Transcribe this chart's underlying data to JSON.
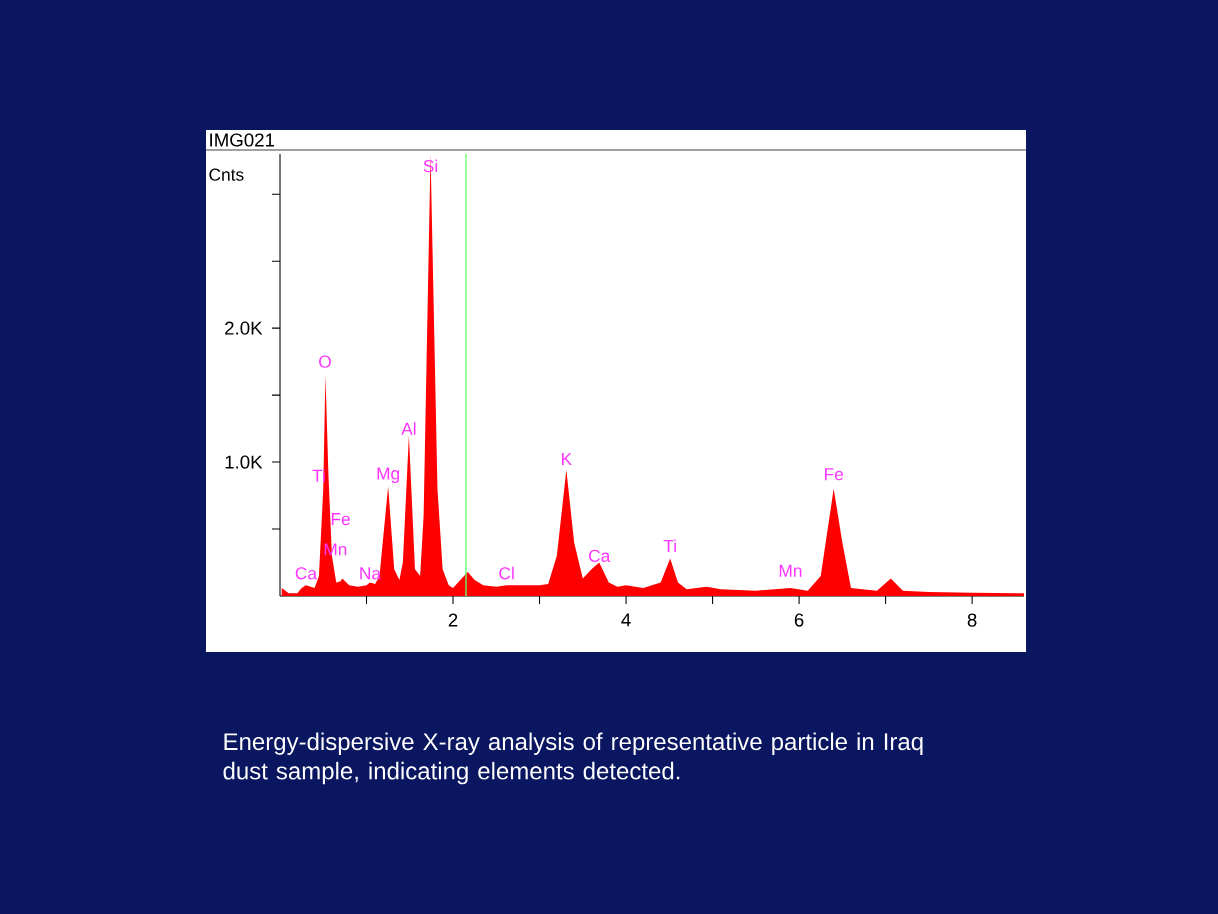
{
  "chart_data": {
    "type": "area",
    "title": "IMG021",
    "ylabel": "Cnts",
    "xlim": [
      0,
      8.6
    ],
    "ylim": [
      0,
      3300
    ],
    "xticks": [
      {
        "value": 1,
        "label": null
      },
      2,
      {
        "value": 3,
        "label": null
      },
      4,
      {
        "value": 5,
        "label": null
      },
      6,
      {
        "value": 7,
        "label": null
      },
      8
    ],
    "yticks": [
      {
        "value": 500,
        "label": null
      },
      {
        "value": 1000,
        "label": "1.0K"
      },
      {
        "value": 1500,
        "label": null
      },
      {
        "value": 2000,
        "label": "2.0K"
      },
      {
        "value": 2500,
        "label": null
      },
      {
        "value": 3000,
        "label": null
      }
    ],
    "x": [
      0.02,
      0.1,
      0.2,
      0.25,
      0.3,
      0.4,
      0.45,
      0.5,
      0.525,
      0.56,
      0.6,
      0.65,
      0.7,
      0.72,
      0.8,
      0.9,
      1.0,
      1.04,
      1.1,
      1.15,
      1.25,
      1.32,
      1.38,
      1.42,
      1.49,
      1.56,
      1.62,
      1.66,
      1.74,
      1.82,
      1.88,
      1.95,
      2.0,
      2.1,
      2.17,
      2.25,
      2.35,
      2.5,
      2.62,
      2.8,
      3.0,
      3.1,
      3.2,
      3.31,
      3.4,
      3.5,
      3.6,
      3.69,
      3.8,
      3.9,
      4.0,
      4.2,
      4.4,
      4.51,
      4.6,
      4.7,
      4.93,
      5.1,
      5.5,
      5.9,
      6.1,
      6.25,
      6.4,
      6.5,
      6.6,
      6.9,
      7.06,
      7.2,
      7.5,
      8.0,
      8.6
    ],
    "series": [
      {
        "color": "#ff0000",
        "values": [
          60,
          20,
          20,
          60,
          80,
          60,
          150,
          800,
          1650,
          900,
          300,
          100,
          110,
          130,
          80,
          70,
          80,
          100,
          90,
          150,
          820,
          200,
          120,
          250,
          1200,
          200,
          150,
          600,
          3300,
          800,
          200,
          80,
          60,
          130,
          180,
          120,
          80,
          70,
          80,
          80,
          80,
          90,
          300,
          940,
          400,
          130,
          200,
          250,
          100,
          70,
          80,
          60,
          100,
          280,
          100,
          50,
          70,
          50,
          40,
          60,
          40,
          150,
          800,
          400,
          60,
          40,
          130,
          40,
          30,
          25,
          20
        ]
      }
    ],
    "ref_lines": [
      {
        "axis": "x",
        "value": 2.15,
        "color": "#66ff66"
      }
    ],
    "annotations": [
      {
        "text": "Ca",
        "x": 0.3,
        "y": 110
      },
      {
        "text": "Ti",
        "x": 0.45,
        "y": 840
      },
      {
        "text": "Fe",
        "x": 0.7,
        "y": 515
      },
      {
        "text": "Mn",
        "x": 0.64,
        "y": 290
      },
      {
        "text": "Na",
        "x": 1.04,
        "y": 110
      },
      {
        "text": "Mg",
        "x": 1.25,
        "y": 830
      },
      {
        "text": "Al",
        "x": 1.49,
        "y": 1190
      },
      {
        "text": "Si",
        "x": 1.74,
        "y": 3150
      },
      {
        "text": "O",
        "x": 0.52,
        "y": 1690
      },
      {
        "text": "Cl",
        "x": 2.62,
        "y": 110
      },
      {
        "text": "K",
        "x": 3.31,
        "y": 965
      },
      {
        "text": "Ca",
        "x": 3.69,
        "y": 240
      },
      {
        "text": "Ti",
        "x": 4.51,
        "y": 315
      },
      {
        "text": "Mn",
        "x": 5.9,
        "y": 130
      },
      {
        "text": "Fe",
        "x": 6.4,
        "y": 850
      },
      "Energy-dispersive X-ray analysis of representative particle in Iraq dust sample, indicating elements detected."
    ]
  }
}
